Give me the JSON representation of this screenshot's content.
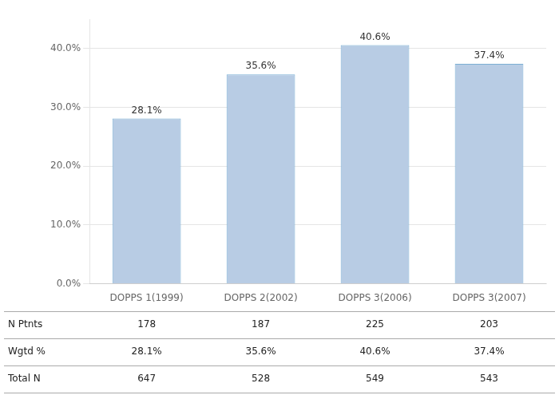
{
  "chart_data": {
    "type": "bar",
    "categories": [
      "DOPPS 1(1999)",
      "DOPPS 2(2002)",
      "DOPPS 3(2006)",
      "DOPPS 3(2007)"
    ],
    "values": [
      28.1,
      35.6,
      40.6,
      37.4
    ],
    "value_labels": [
      "28.1%",
      "35.6%",
      "40.6%",
      "37.4%"
    ],
    "data_labels": true,
    "color": "#b8cce4",
    "ylim": [
      0,
      45
    ],
    "yticks": [
      {
        "value": 0,
        "label": "0.0%"
      },
      {
        "value": 10,
        "label": "10.0%"
      },
      {
        "value": 20,
        "label": "20.0%"
      },
      {
        "value": 30,
        "label": "30.0%"
      },
      {
        "value": 40,
        "label": "40.0%"
      }
    ],
    "grid": true,
    "table": {
      "row_labels": [
        "N Ptnts",
        "Wgtd %",
        "Total N"
      ],
      "rows": [
        [
          "178",
          "187",
          "225",
          "203"
        ],
        [
          "28.1%",
          "35.6%",
          "40.6%",
          "37.4%"
        ],
        [
          "647",
          "528",
          "549",
          "543"
        ]
      ]
    }
  }
}
